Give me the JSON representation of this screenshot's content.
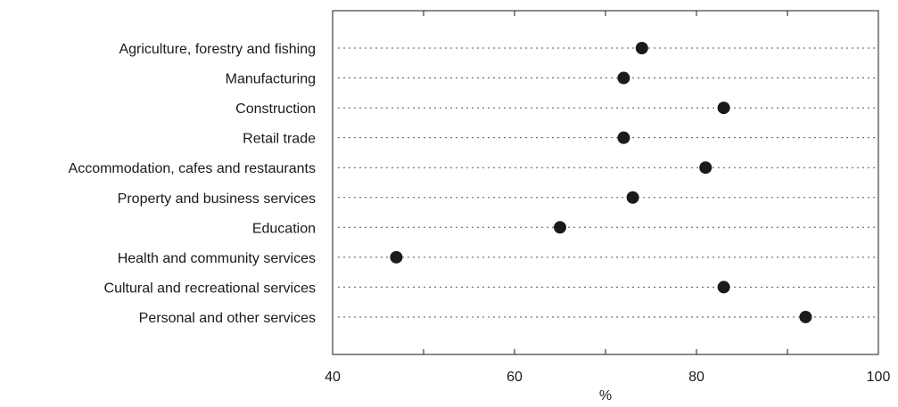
{
  "chart_data": {
    "type": "scatter",
    "categories": [
      "Agriculture, forestry and fishing",
      "Manufacturing",
      "Construction",
      "Retail trade",
      "Accommodation, cafes and restaurants",
      "Property and business services",
      "Education",
      "Health and community services",
      "Cultural and recreational services",
      "Personal and other services"
    ],
    "values": [
      74,
      72,
      83,
      72,
      81,
      73,
      65,
      47,
      83,
      92
    ],
    "xlabel": "%",
    "ylabel": "",
    "xlim": [
      40,
      100
    ],
    "xticks": [
      40,
      60,
      80,
      100
    ],
    "xtick_labels": [
      "40",
      "60",
      "80",
      "100"
    ],
    "grid": "dotted horizontal lines per category"
  }
}
